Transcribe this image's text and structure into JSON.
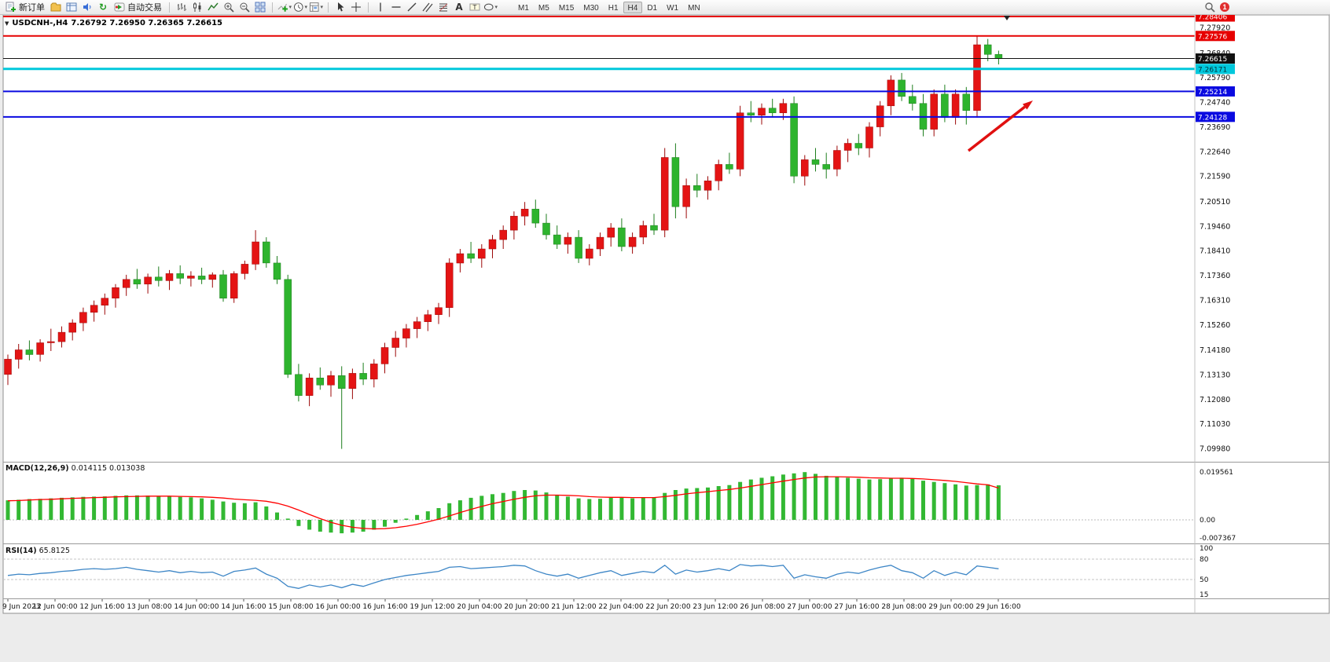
{
  "toolbar": {
    "new_order_label": "新订单",
    "autotrading_label": "自动交易",
    "timeframes": [
      "M1",
      "M5",
      "M15",
      "M30",
      "H1",
      "H4",
      "D1",
      "W1",
      "MN"
    ],
    "active_timeframe": "H4",
    "notification_count": "1",
    "icons": [
      "new-order",
      "charts-profile",
      "market-watch",
      "sound",
      "refresh",
      "autotrading",
      "bar-chart",
      "candlestick-chart",
      "line-chart",
      "zoom-in",
      "zoom-out",
      "tile-windows",
      "indicators",
      "periods",
      "templates",
      "cursor",
      "crosshair",
      "vertical-line",
      "horizontal-line",
      "trendline",
      "channel",
      "fibonacci",
      "text",
      "label",
      "shapes",
      "search",
      "notification"
    ]
  },
  "chart_data": {
    "type": "candlestick",
    "symbol_period": "USDCNH-,H4",
    "ohlc_display": "7.26792 7.26950 7.26365 7.26615",
    "current_price": "7.26615",
    "price_axis_labels": [
      "7.27920",
      "7.26840",
      "7.25790",
      "7.24740",
      "7.23690",
      "7.22640",
      "7.21590",
      "7.20510",
      "7.19460",
      "7.18410",
      "7.17360",
      "7.16310",
      "7.15260",
      "7.14180",
      "7.13130",
      "7.12080",
      "7.11030",
      "7.09980"
    ],
    "time_axis_labels": [
      "9 Jun 2023",
      "12 Jun 00:00",
      "12 Jun 16:00",
      "13 Jun 08:00",
      "14 Jun 00:00",
      "14 Jun 16:00",
      "15 Jun 08:00",
      "16 Jun 00:00",
      "16 Jun 16:00",
      "19 Jun 12:00",
      "20 Jun 04:00",
      "20 Jun 20:00",
      "21 Jun 12:00",
      "22 Jun 04:00",
      "22 Jun 20:00",
      "23 Jun 12:00",
      "26 Jun 08:00",
      "27 Jun 00:00",
      "27 Jun 16:00",
      "28 Jun 08:00",
      "29 Jun 00:00",
      "29 Jun 16:00"
    ],
    "levels": [
      {
        "value": "7.28406",
        "color": "#e60000",
        "text_color": "#ffffff",
        "width": 2,
        "type": "resistance-line"
      },
      {
        "value": "7.27576",
        "color": "#e60000",
        "text_color": "#ffffff",
        "width": 2,
        "type": "resistance-line"
      },
      {
        "value": "7.26615",
        "color": "#111111",
        "text_color": "#ffffff",
        "width": 1,
        "type": "current-price-line"
      },
      {
        "value": "7.26171",
        "color": "#00c8dc",
        "text_color": "#00303a",
        "width": 3,
        "type": "support-line"
      },
      {
        "value": "7.25214",
        "color": "#0a0ae0",
        "text_color": "#ffffff",
        "width": 2,
        "type": "support-line"
      },
      {
        "value": "7.24128",
        "color": "#0a0ae0",
        "text_color": "#ffffff",
        "width": 2,
        "type": "support-line"
      }
    ],
    "colors": {
      "up": "#e41414",
      "up_dark": "#9c0808",
      "down": "#2eb42e",
      "down_dark": "#1e7e1e",
      "background": "#ffffff"
    },
    "candles": [
      [
        7.1315,
        7.14,
        7.127,
        7.138
      ],
      [
        7.138,
        7.1445,
        7.134,
        7.142
      ],
      [
        7.142,
        7.146,
        7.1375,
        7.14
      ],
      [
        7.14,
        7.1465,
        7.137,
        7.145
      ],
      [
        7.145,
        7.151,
        7.1415,
        7.1455
      ],
      [
        7.1455,
        7.152,
        7.143,
        7.1495
      ],
      [
        7.1495,
        7.155,
        7.146,
        7.1535
      ],
      [
        7.1535,
        7.16,
        7.15,
        7.158
      ],
      [
        7.158,
        7.163,
        7.154,
        7.161
      ],
      [
        7.161,
        7.166,
        7.157,
        7.164
      ],
      [
        7.164,
        7.17,
        7.16,
        7.1685
      ],
      [
        7.1685,
        7.174,
        7.165,
        7.172
      ],
      [
        7.172,
        7.1765,
        7.168,
        7.17
      ],
      [
        7.17,
        7.1745,
        7.166,
        7.173
      ],
      [
        7.173,
        7.1775,
        7.169,
        7.1715
      ],
      [
        7.1715,
        7.176,
        7.1675,
        7.1745
      ],
      [
        7.1745,
        7.178,
        7.17,
        7.1725
      ],
      [
        7.1725,
        7.1755,
        7.169,
        7.1735
      ],
      [
        7.1735,
        7.177,
        7.17,
        7.172
      ],
      [
        7.172,
        7.175,
        7.1685,
        7.174
      ],
      [
        7.174,
        7.176,
        7.1625,
        7.164
      ],
      [
        7.164,
        7.1755,
        7.162,
        7.1745
      ],
      [
        7.1745,
        7.18,
        7.172,
        7.1785
      ],
      [
        7.1785,
        7.193,
        7.176,
        7.188
      ],
      [
        7.188,
        7.19,
        7.177,
        7.179
      ],
      [
        7.179,
        7.182,
        7.17,
        7.172
      ],
      [
        7.172,
        7.174,
        7.13,
        7.1315
      ],
      [
        7.1315,
        7.136,
        7.12,
        7.1225
      ],
      [
        7.1225,
        7.132,
        7.118,
        7.13
      ],
      [
        7.13,
        7.1345,
        7.125,
        7.127
      ],
      [
        7.127,
        7.133,
        7.122,
        7.131
      ],
      [
        7.131,
        7.135,
        7.0998,
        7.1255
      ],
      [
        7.1255,
        7.134,
        7.121,
        7.132
      ],
      [
        7.132,
        7.1365,
        7.127,
        7.1295
      ],
      [
        7.1295,
        7.138,
        7.126,
        7.136
      ],
      [
        7.136,
        7.145,
        7.132,
        7.143
      ],
      [
        7.143,
        7.15,
        7.139,
        7.147
      ],
      [
        7.147,
        7.153,
        7.143,
        7.151
      ],
      [
        7.151,
        7.156,
        7.147,
        7.154
      ],
      [
        7.154,
        7.159,
        7.15,
        7.157
      ],
      [
        7.157,
        7.162,
        7.153,
        7.16
      ],
      [
        7.16,
        7.181,
        7.156,
        7.179
      ],
      [
        7.179,
        7.185,
        7.175,
        7.183
      ],
      [
        7.183,
        7.188,
        7.179,
        7.181
      ],
      [
        7.181,
        7.187,
        7.177,
        7.185
      ],
      [
        7.185,
        7.191,
        7.181,
        7.189
      ],
      [
        7.189,
        7.195,
        7.185,
        7.193
      ],
      [
        7.193,
        7.201,
        7.189,
        7.199
      ],
      [
        7.199,
        7.205,
        7.195,
        7.202
      ],
      [
        7.202,
        7.206,
        7.194,
        7.196
      ],
      [
        7.196,
        7.2,
        7.189,
        7.191
      ],
      [
        7.191,
        7.195,
        7.185,
        7.187
      ],
      [
        7.187,
        7.192,
        7.183,
        7.19
      ],
      [
        7.19,
        7.193,
        7.179,
        7.181
      ],
      [
        7.181,
        7.187,
        7.178,
        7.185
      ],
      [
        7.185,
        7.192,
        7.182,
        7.19
      ],
      [
        7.19,
        7.196,
        7.186,
        7.194
      ],
      [
        7.194,
        7.198,
        7.184,
        7.186
      ],
      [
        7.186,
        7.192,
        7.183,
        7.19
      ],
      [
        7.19,
        7.197,
        7.187,
        7.195
      ],
      [
        7.195,
        7.2,
        7.191,
        7.193
      ],
      [
        7.193,
        7.228,
        7.19,
        7.224
      ],
      [
        7.224,
        7.23,
        7.198,
        7.203
      ],
      [
        7.203,
        7.215,
        7.198,
        7.212
      ],
      [
        7.212,
        7.217,
        7.207,
        7.21
      ],
      [
        7.21,
        7.216,
        7.206,
        7.214
      ],
      [
        7.214,
        7.223,
        7.21,
        7.221
      ],
      [
        7.221,
        7.226,
        7.217,
        7.219
      ],
      [
        7.219,
        7.246,
        7.216,
        7.243
      ],
      [
        7.243,
        7.248,
        7.239,
        7.242
      ],
      [
        7.242,
        7.247,
        7.238,
        7.245
      ],
      [
        7.245,
        7.249,
        7.241,
        7.243
      ],
      [
        7.243,
        7.249,
        7.24,
        7.247
      ],
      [
        7.247,
        7.25,
        7.213,
        7.216
      ],
      [
        7.216,
        7.225,
        7.212,
        7.223
      ],
      [
        7.223,
        7.228,
        7.218,
        7.221
      ],
      [
        7.221,
        7.226,
        7.215,
        7.219
      ],
      [
        7.219,
        7.229,
        7.216,
        7.227
      ],
      [
        7.227,
        7.232,
        7.222,
        7.23
      ],
      [
        7.23,
        7.234,
        7.225,
        7.228
      ],
      [
        7.228,
        7.239,
        7.224,
        7.237
      ],
      [
        7.237,
        7.248,
        7.233,
        7.246
      ],
      [
        7.246,
        7.259,
        7.242,
        7.257
      ],
      [
        7.257,
        7.26,
        7.248,
        7.25
      ],
      [
        7.25,
        7.255,
        7.244,
        7.247
      ],
      [
        7.247,
        7.251,
        7.233,
        7.236
      ],
      [
        7.236,
        7.253,
        7.233,
        7.251
      ],
      [
        7.251,
        7.255,
        7.239,
        7.241
      ],
      [
        7.241,
        7.253,
        7.238,
        7.251
      ],
      [
        7.251,
        7.254,
        7.238,
        7.244
      ],
      [
        7.244,
        7.2758,
        7.241,
        7.272
      ],
      [
        7.272,
        7.2745,
        7.265,
        7.2679
      ],
      [
        7.26792,
        7.2695,
        7.26365,
        7.26615
      ]
    ],
    "macd": {
      "label": "MACD(12,26,9)",
      "value_main": "0.014115",
      "value_signal": "0.013038",
      "scale_labels": [
        "0.019561",
        "0.00",
        "-0.007367"
      ],
      "histogram_color": "#33b833",
      "signal_color": "#ff0000",
      "histogram": [
        0.008,
        0.0082,
        0.0085,
        0.0086,
        0.0088,
        0.009,
        0.0092,
        0.0094,
        0.0095,
        0.0096,
        0.0098,
        0.01,
        0.01,
        0.0099,
        0.0097,
        0.0096,
        0.0094,
        0.0092,
        0.0088,
        0.0082,
        0.0075,
        0.007,
        0.0068,
        0.0072,
        0.0055,
        0.003,
        0.0005,
        -0.0025,
        -0.004,
        -0.0048,
        -0.0052,
        -0.0055,
        -0.0052,
        -0.0048,
        -0.004,
        -0.0028,
        -0.0012,
        0.0005,
        0.002,
        0.0035,
        0.0048,
        0.0068,
        0.008,
        0.009,
        0.0098,
        0.0105,
        0.011,
        0.0118,
        0.0122,
        0.012,
        0.0112,
        0.0102,
        0.0095,
        0.0088,
        0.0085,
        0.0086,
        0.009,
        0.009,
        0.0088,
        0.009,
        0.0092,
        0.011,
        0.0122,
        0.0128,
        0.013,
        0.0132,
        0.0138,
        0.0142,
        0.0155,
        0.0165,
        0.0172,
        0.0178,
        0.0185,
        0.019,
        0.0195,
        0.0188,
        0.018,
        0.0175,
        0.0172,
        0.0168,
        0.0165,
        0.0166,
        0.017,
        0.0172,
        0.0168,
        0.016,
        0.0155,
        0.015,
        0.0145,
        0.014,
        0.0142,
        0.0145,
        0.0141
      ],
      "signal": [
        0.0078,
        0.0079,
        0.0081,
        0.0083,
        0.0084,
        0.0086,
        0.0088,
        0.0089,
        0.0091,
        0.0092,
        0.0094,
        0.0095,
        0.0096,
        0.0097,
        0.0097,
        0.0097,
        0.0096,
        0.0095,
        0.0094,
        0.0092,
        0.0089,
        0.0085,
        0.0082,
        0.008,
        0.0076,
        0.0068,
        0.0056,
        0.004,
        0.0022,
        0.0005,
        -0.001,
        -0.0022,
        -0.003,
        -0.0035,
        -0.0037,
        -0.0036,
        -0.0032,
        -0.0026,
        -0.0018,
        -0.0008,
        0.0003,
        0.0016,
        0.003,
        0.0043,
        0.0055,
        0.0066,
        0.0075,
        0.0084,
        0.0092,
        0.0098,
        0.0101,
        0.0101,
        0.01,
        0.0098,
        0.0095,
        0.0093,
        0.0092,
        0.0092,
        0.0091,
        0.0091,
        0.0091,
        0.0095,
        0.01,
        0.0106,
        0.0111,
        0.0115,
        0.012,
        0.0124,
        0.013,
        0.0137,
        0.0144,
        0.0151,
        0.0158,
        0.0165,
        0.0171,
        0.0175,
        0.0176,
        0.0176,
        0.0175,
        0.0174,
        0.0172,
        0.0171,
        0.017,
        0.017,
        0.0169,
        0.0167,
        0.0164,
        0.0161,
        0.0157,
        0.0152,
        0.0147,
        0.0143,
        0.013
      ]
    },
    "rsi": {
      "label": "RSI(14)",
      "value_label": "65.8125",
      "scale_labels": [
        "100",
        "80",
        "50",
        "15"
      ],
      "level_lines": [
        80,
        50
      ],
      "color": "#3d86c6",
      "values": [
        56,
        58,
        57,
        59,
        60,
        62,
        63,
        65,
        66,
        65,
        66,
        68,
        65,
        63,
        61,
        63,
        60,
        62,
        60,
        61,
        55,
        62,
        64,
        67,
        58,
        52,
        40,
        37,
        42,
        39,
        42,
        38,
        43,
        40,
        45,
        50,
        53,
        56,
        58,
        60,
        62,
        68,
        69,
        66,
        67,
        68,
        69,
        71,
        70,
        63,
        58,
        55,
        58,
        52,
        56,
        60,
        63,
        56,
        59,
        62,
        60,
        71,
        58,
        64,
        61,
        63,
        66,
        63,
        72,
        70,
        71,
        69,
        71,
        52,
        57,
        54,
        52,
        58,
        61,
        59,
        64,
        68,
        71,
        63,
        60,
        52,
        63,
        56,
        61,
        57,
        70,
        68,
        65.8
      ]
    }
  },
  "annotation": {
    "arrow": {
      "from": [
        1232,
        192
      ],
      "to": [
        1314,
        128
      ],
      "color": "#e01010",
      "width": 3.5
    }
  }
}
